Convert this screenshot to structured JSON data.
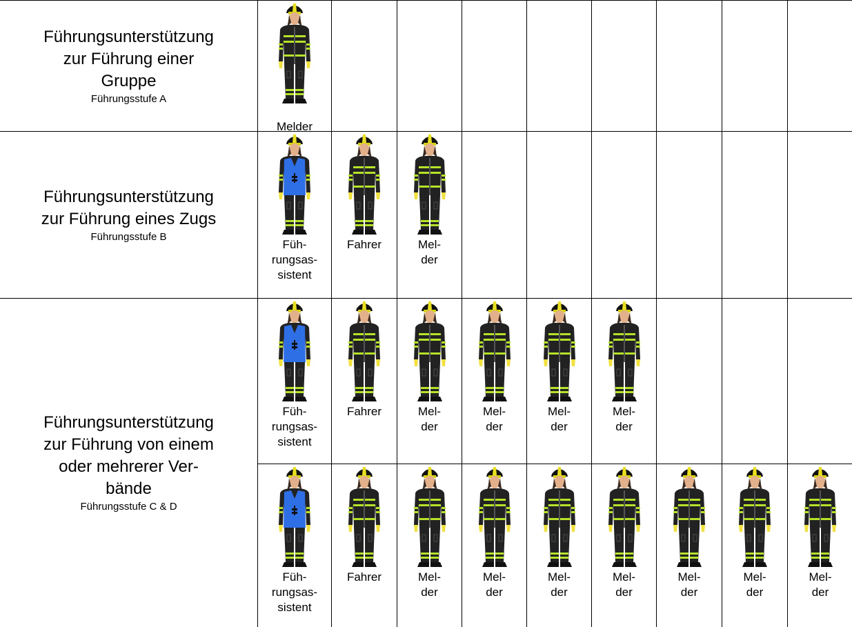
{
  "groups": [
    {
      "title": [
        "Führungsunterstützung",
        "zur Führung einer",
        "Gruppe"
      ],
      "subtitle": "Führungsstufe A",
      "rows": [
        [
          {
            "caption": [
              "Melder"
            ]
          }
        ]
      ]
    },
    {
      "title": [
        "Führungsunterstützung",
        "zur Führung eines Zugs"
      ],
      "subtitle": "Führungsstufe B",
      "rows": [
        [
          {
            "caption": [
              "Füh-",
              "rungsas-",
              "sistent"
            ],
            "vest_color": "#2f6fe6"
          },
          {
            "caption": [
              "Fahrer"
            ]
          },
          {
            "caption": [
              "Mel-",
              "der"
            ]
          }
        ]
      ]
    },
    {
      "title": [
        "Führungsunterstützung",
        "zur Führung von einem",
        "oder mehrerer Ver-",
        "bände"
      ],
      "subtitle": "Führungsstufe C & D",
      "rows": [
        [
          {
            "caption": [
              "Füh-",
              "rungsas-",
              "sistent"
            ],
            "vest_color": "#2f6fe6"
          },
          {
            "caption": [
              "Fahrer"
            ]
          },
          {
            "caption": [
              "Mel-",
              "der"
            ]
          },
          {
            "caption": [
              "Mel-",
              "der"
            ]
          },
          {
            "caption": [
              "Mel-",
              "der"
            ]
          },
          {
            "caption": [
              "Mel-",
              "der"
            ]
          }
        ],
        [
          {
            "caption": [
              "Füh-",
              "rungsas-",
              "sistent"
            ],
            "vest_color": "#2f6fe6"
          },
          {
            "caption": [
              "Fahrer"
            ]
          },
          {
            "caption": [
              "Mel-",
              "der"
            ]
          },
          {
            "caption": [
              "Mel-",
              "der"
            ]
          },
          {
            "caption": [
              "Mel-",
              "der"
            ]
          },
          {
            "caption": [
              "Mel-",
              "der"
            ]
          },
          {
            "caption": [
              "Mel-",
              "der"
            ]
          },
          {
            "caption": [
              "Mel-",
              "der"
            ]
          },
          {
            "caption": [
              "Mel-",
              "der"
            ]
          }
        ]
      ]
    }
  ]
}
